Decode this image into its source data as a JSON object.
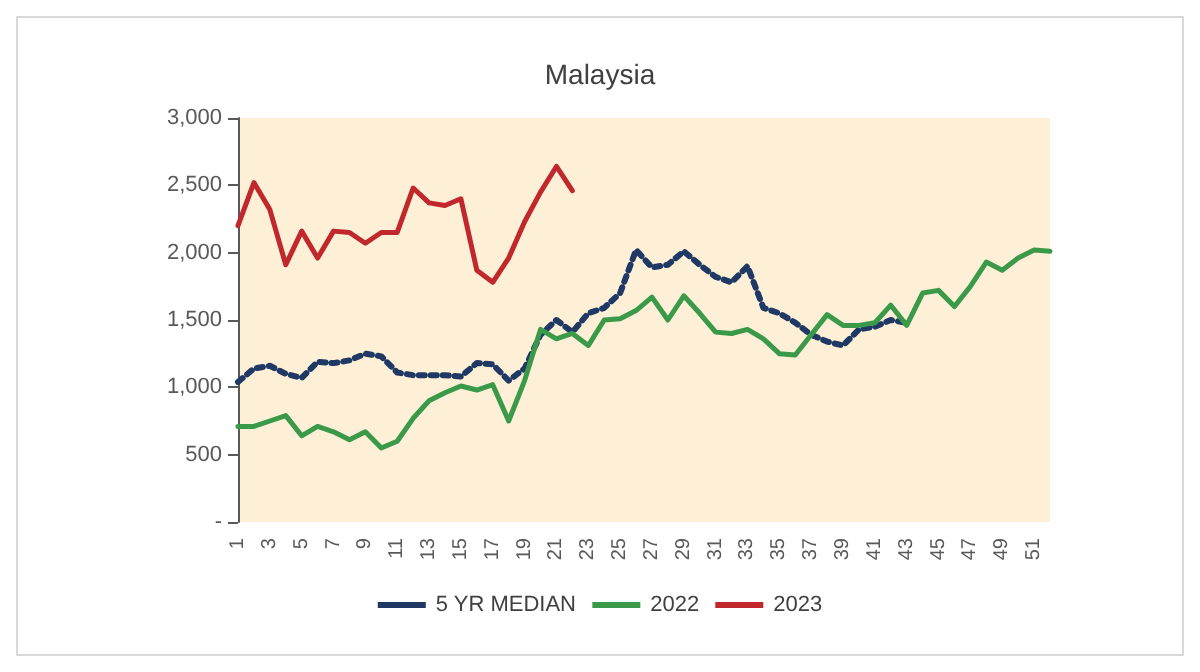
{
  "chart_data": {
    "type": "line",
    "title": "Malaysia",
    "categories": [
      "1",
      null,
      "3",
      null,
      "5",
      null,
      "7",
      null,
      "9",
      null,
      "11",
      null,
      "13",
      null,
      "15",
      null,
      "17",
      null,
      "19",
      null,
      "21",
      null,
      "23",
      null,
      "25",
      null,
      "27",
      null,
      "29",
      null,
      "31",
      null,
      "33",
      null,
      "35",
      null,
      "37",
      null,
      "39",
      null,
      "41",
      null,
      "43",
      null,
      "45",
      null,
      "47",
      null,
      "49",
      null,
      "51",
      null
    ],
    "series": [
      {
        "name": "5 YR MEDIAN",
        "color": "#1f3864",
        "line_style": "dotted",
        "values": [
          1040,
          1140,
          1160,
          1100,
          1070,
          1190,
          1180,
          1200,
          1250,
          1230,
          1110,
          1090,
          1090,
          1090,
          1080,
          1180,
          1170,
          1050,
          1140,
          1390,
          1500,
          1410,
          1550,
          1590,
          1700,
          2020,
          1890,
          1910,
          2010,
          1910,
          1820,
          1780,
          1900,
          1590,
          1550,
          1480,
          1390,
          1340,
          1310,
          1430,
          1450,
          1500,
          1480,
          null,
          null,
          null,
          null,
          null,
          null,
          null,
          null,
          null
        ]
      },
      {
        "name": "2022",
        "color": "#3a9a4a",
        "line_style": "solid",
        "values": [
          710,
          710,
          750,
          790,
          640,
          710,
          670,
          610,
          670,
          550,
          600,
          770,
          900,
          960,
          1010,
          980,
          1020,
          750,
          1050,
          1430,
          1360,
          1400,
          1310,
          1500,
          1510,
          1570,
          1670,
          1500,
          1680,
          1550,
          1410,
          1400,
          1430,
          1360,
          1250,
          1240,
          1390,
          1540,
          1460,
          1460,
          1480,
          1610,
          1460,
          1700,
          1720,
          1600,
          1750,
          1930,
          1870,
          1960,
          2020,
          2010
        ]
      },
      {
        "name": "2023",
        "color": "#c0282d",
        "line_style": "solid",
        "values": [
          2200,
          2520,
          2320,
          1910,
          2160,
          1960,
          2160,
          2150,
          2070,
          2150,
          2150,
          2480,
          2370,
          2350,
          2400,
          1870,
          1780,
          1960,
          2230,
          2450,
          2640,
          2460,
          null,
          null,
          null,
          null,
          null,
          null,
          null,
          null,
          null,
          null,
          null,
          null,
          null,
          null,
          null,
          null,
          null,
          null,
          null,
          null,
          null,
          null,
          null,
          null,
          null,
          null,
          null,
          null,
          null,
          null
        ]
      }
    ],
    "ylim": [
      0,
      3000
    ],
    "yticks": [
      {
        "value": 0,
        "label": "-"
      },
      500,
      {
        "value": 1000,
        "label": "1,000"
      },
      {
        "value": 1500,
        "label": "1,500"
      },
      {
        "value": 2000,
        "label": "2,000"
      },
      {
        "value": 2500,
        "label": "2,500"
      },
      {
        "value": 3000,
        "label": "3,000"
      }
    ],
    "grid": false,
    "legend": "bottom",
    "marker": "none"
  }
}
